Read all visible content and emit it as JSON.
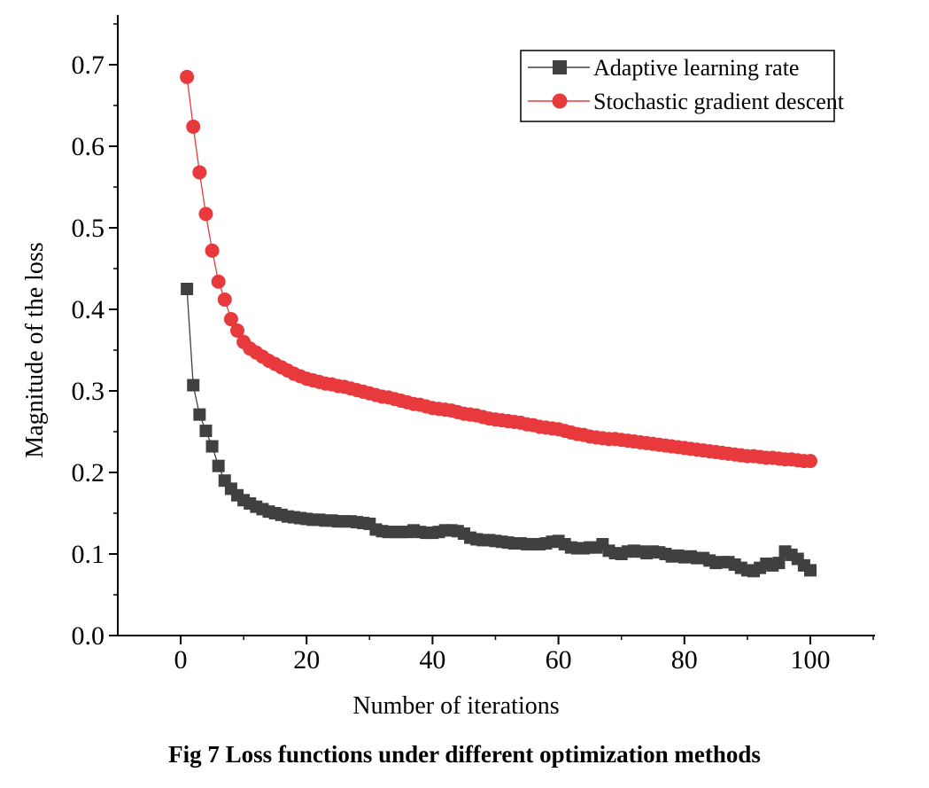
{
  "caption": "Fig 7 Loss functions under different optimization methods",
  "chart_data": {
    "type": "line",
    "title": "",
    "xlabel": "Number of iterations",
    "ylabel": "Magnitude of the loss",
    "xlim": [
      -10,
      110
    ],
    "ylim": [
      0.0,
      0.75
    ],
    "xticks": [
      0,
      20,
      40,
      60,
      80,
      100
    ],
    "xtick_labels": [
      "0",
      "20",
      "40",
      "60",
      "80",
      "100"
    ],
    "yticks": [
      0.0,
      0.1,
      0.2,
      0.3,
      0.4,
      0.5,
      0.6,
      0.7
    ],
    "ytick_labels": [
      "0.0",
      "0.1",
      "0.2",
      "0.3",
      "0.4",
      "0.5",
      "0.6",
      "0.7"
    ],
    "grid": false,
    "legend_position": "top-right",
    "x": [
      1,
      2,
      3,
      4,
      5,
      6,
      7,
      8,
      9,
      10,
      11,
      12,
      13,
      14,
      15,
      16,
      17,
      18,
      19,
      20,
      21,
      22,
      23,
      24,
      25,
      26,
      27,
      28,
      29,
      30,
      31,
      32,
      33,
      34,
      35,
      36,
      37,
      38,
      39,
      40,
      41,
      42,
      43,
      44,
      45,
      46,
      47,
      48,
      49,
      50,
      51,
      52,
      53,
      54,
      55,
      56,
      57,
      58,
      59,
      60,
      61,
      62,
      63,
      64,
      65,
      66,
      67,
      68,
      69,
      70,
      71,
      72,
      73,
      74,
      75,
      76,
      77,
      78,
      79,
      80,
      81,
      82,
      83,
      84,
      85,
      86,
      87,
      88,
      89,
      90,
      91,
      92,
      93,
      94,
      95,
      96,
      97,
      98,
      99,
      100
    ],
    "series": [
      {
        "name": "Adaptive learning rate",
        "color": "#404040",
        "marker": "square",
        "values": [
          0.425,
          0.307,
          0.271,
          0.251,
          0.232,
          0.208,
          0.19,
          0.18,
          0.172,
          0.166,
          0.162,
          0.158,
          0.155,
          0.152,
          0.15,
          0.148,
          0.146,
          0.145,
          0.144,
          0.143,
          0.142,
          0.142,
          0.141,
          0.141,
          0.14,
          0.14,
          0.14,
          0.139,
          0.138,
          0.137,
          0.13,
          0.128,
          0.127,
          0.127,
          0.127,
          0.127,
          0.129,
          0.127,
          0.126,
          0.126,
          0.127,
          0.129,
          0.129,
          0.128,
          0.125,
          0.12,
          0.118,
          0.117,
          0.117,
          0.116,
          0.115,
          0.114,
          0.113,
          0.113,
          0.112,
          0.112,
          0.112,
          0.113,
          0.115,
          0.116,
          0.112,
          0.108,
          0.107,
          0.107,
          0.108,
          0.108,
          0.112,
          0.104,
          0.101,
          0.1,
          0.103,
          0.104,
          0.103,
          0.101,
          0.103,
          0.102,
          0.1,
          0.097,
          0.098,
          0.096,
          0.097,
          0.095,
          0.095,
          0.092,
          0.089,
          0.09,
          0.09,
          0.087,
          0.083,
          0.08,
          0.079,
          0.083,
          0.088,
          0.086,
          0.089,
          0.103,
          0.099,
          0.094,
          0.086,
          0.08
        ]
      },
      {
        "name": "Stochastic gradient descent",
        "color": "#e8393c",
        "marker": "circle",
        "values": [
          0.685,
          0.624,
          0.568,
          0.517,
          0.472,
          0.434,
          0.412,
          0.388,
          0.374,
          0.36,
          0.352,
          0.347,
          0.342,
          0.337,
          0.333,
          0.329,
          0.325,
          0.321,
          0.318,
          0.315,
          0.313,
          0.311,
          0.309,
          0.308,
          0.306,
          0.305,
          0.303,
          0.301,
          0.299,
          0.297,
          0.295,
          0.293,
          0.292,
          0.29,
          0.288,
          0.286,
          0.284,
          0.283,
          0.281,
          0.279,
          0.278,
          0.277,
          0.276,
          0.274,
          0.272,
          0.271,
          0.27,
          0.268,
          0.266,
          0.265,
          0.264,
          0.263,
          0.262,
          0.261,
          0.259,
          0.258,
          0.256,
          0.255,
          0.254,
          0.253,
          0.251,
          0.249,
          0.247,
          0.246,
          0.244,
          0.243,
          0.242,
          0.241,
          0.241,
          0.24,
          0.239,
          0.238,
          0.237,
          0.236,
          0.235,
          0.234,
          0.233,
          0.232,
          0.231,
          0.23,
          0.229,
          0.228,
          0.227,
          0.226,
          0.225,
          0.224,
          0.223,
          0.222,
          0.221,
          0.22,
          0.22,
          0.219,
          0.218,
          0.218,
          0.217,
          0.216,
          0.216,
          0.215,
          0.214,
          0.214
        ]
      }
    ]
  }
}
